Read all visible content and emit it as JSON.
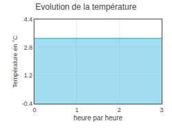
{
  "chart_data": {
    "type": "area",
    "title": "Evolution de la température",
    "xlabel": "heure par heure",
    "ylabel": "Température en °C",
    "x": [
      0,
      3
    ],
    "values": [
      3.32,
      3.32
    ],
    "color": "#44bbdd",
    "xlim": [
      0,
      3
    ],
    "ylim": [
      -0.4,
      4.4
    ],
    "xticks": [
      0,
      1,
      2,
      3
    ],
    "yticks": [
      -0.4,
      1.2,
      2.8,
      4.4
    ],
    "grid": true
  }
}
